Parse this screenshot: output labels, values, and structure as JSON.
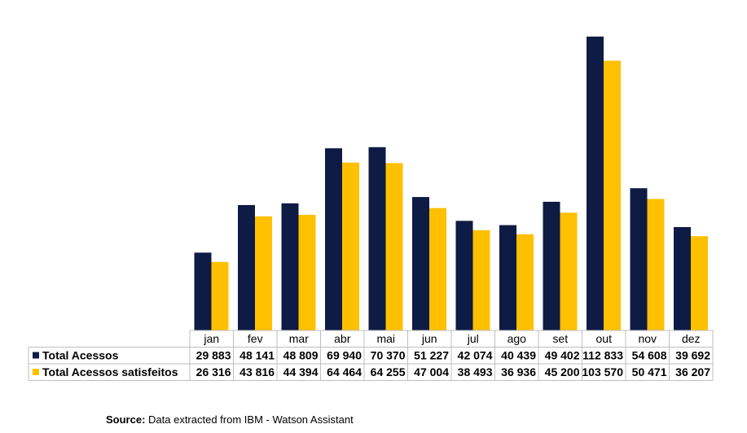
{
  "chart_data": {
    "type": "bar",
    "categories": [
      "jan",
      "fev",
      "mar",
      "abr",
      "mai",
      "jun",
      "jul",
      "ago",
      "set",
      "out",
      "nov",
      "dez"
    ],
    "series": [
      {
        "name": "Total Acessos",
        "color": "#0d1b45",
        "values": [
          29883,
          48141,
          48809,
          69940,
          70370,
          51227,
          42074,
          40439,
          49402,
          112833,
          54608,
          39692
        ],
        "labels": [
          "29 883",
          "48 141",
          "48 809",
          "69 940",
          "70 370",
          "51 227",
          "42 074",
          "40 439",
          "49 402",
          "112 833",
          "54 608",
          "39 692"
        ]
      },
      {
        "name": "Total Acessos satisfeitos",
        "color": "#ffc000",
        "values": [
          26316,
          43816,
          44394,
          64464,
          64255,
          47004,
          38493,
          36936,
          45200,
          103570,
          50471,
          36207
        ],
        "labels": [
          "26 316",
          "43 816",
          "44 394",
          "64 464",
          "64 255",
          "47 004",
          "38 493",
          "36 936",
          "45 200",
          "103 570",
          "50 471",
          "36 207"
        ]
      }
    ],
    "ylim": [
      0,
      120000
    ],
    "data_table": true,
    "grid": false
  },
  "source": {
    "label": "Source:",
    "text": " Data extracted from IBM - Watson Assistant"
  }
}
